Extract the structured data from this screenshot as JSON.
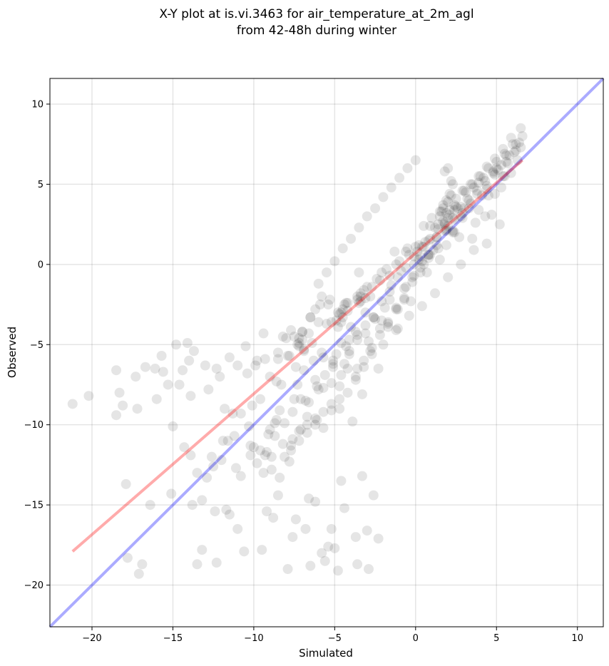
{
  "chart_data": {
    "type": "scatter",
    "title": "X-Y plot at is.vi.3463 for air_temperature_at_2m_agl",
    "subtitle": "from 42-48h during winter",
    "xlabel": "Simulated",
    "ylabel": "Observed",
    "xlim": [
      -22.6,
      11.6
    ],
    "ylim": [
      -22.6,
      11.6
    ],
    "x_ticks": [
      -20,
      -15,
      -10,
      -5,
      0,
      5,
      10
    ],
    "y_ticks": [
      -20,
      -15,
      -10,
      -5,
      0,
      5,
      10
    ],
    "x_tick_labels": [
      "−20",
      "−15",
      "−10",
      "−5",
      "0",
      "5",
      "10"
    ],
    "y_tick_labels": [
      "−20",
      "−15",
      "−10",
      "−5",
      "0",
      "5",
      "10"
    ],
    "grid": true,
    "colors": {
      "points": "#000000",
      "fit_line": "#ff0000",
      "identity_line": "#0000ff"
    },
    "series": [
      {
        "kind": "points",
        "x": [
          -21.2,
          -20.2,
          -18.5,
          -18.5,
          -18.3,
          -18.1,
          -17.9,
          -17.3,
          -17.2,
          -16.7,
          -16.1,
          -16.0,
          -15.7,
          -15.6,
          -15.3,
          -15.1,
          -15.0,
          -14.8,
          -14.6,
          -14.4,
          -14.3,
          -14.1,
          -14.0,
          -13.9,
          -13.9,
          -13.7,
          -13.5,
          -13.2,
          -13.0,
          -12.8,
          -12.6,
          -12.4,
          -12.3,
          -12.1,
          -11.9,
          -11.7,
          -11.5,
          -11.3,
          -11.0,
          -10.8,
          -10.5,
          -10.3,
          -10.1,
          -9.9,
          -9.6,
          -9.4,
          -9.2,
          -9.0,
          -8.9,
          -8.7,
          -8.5,
          -8.3,
          -8.1,
          -7.9,
          -7.7,
          -7.5,
          -7.3,
          -7.1,
          -6.9,
          -6.7,
          -6.5,
          -6.3,
          -6.1,
          -5.9,
          -5.7,
          -5.5,
          -5.3,
          -5.1,
          -4.9,
          -4.7,
          -4.5,
          -4.3,
          -4.1,
          -3.9,
          -3.7,
          -3.5,
          -3.3,
          -3.1,
          -2.9,
          -2.7,
          -2.5,
          -2.3,
          -2.1,
          -1.9,
          -1.7,
          -1.5,
          -1.3,
          -1.1,
          -0.9,
          -0.7,
          -0.5,
          -0.3,
          -0.1,
          0.1,
          0.3,
          0.5,
          0.7,
          0.9,
          1.1,
          1.3,
          1.5,
          1.7,
          1.9,
          2.1,
          2.3,
          2.5,
          2.7,
          2.9,
          3.1,
          3.3,
          3.5,
          3.7,
          3.9,
          4.1,
          4.3,
          4.5,
          4.7,
          4.9,
          5.1,
          5.3,
          5.5,
          5.7,
          5.9,
          6.1,
          6.3,
          6.5,
          6.6,
          -17.8,
          -17.1,
          -16.9,
          -16.4,
          -13.5,
          -13.2,
          -12.3,
          -11.5,
          -11.0,
          -10.6,
          -9.5,
          -9.2,
          -8.8,
          -8.5,
          -7.9,
          -7.6,
          -7.4,
          -6.8,
          -6.6,
          -6.5,
          -6.2,
          -5.8,
          -5.6,
          -5.4,
          -5.2,
          -5.0,
          -4.8,
          -4.6,
          -4.4,
          -3.7,
          -3.6,
          -3.3,
          -3.0,
          -2.9,
          -2.6,
          -2.3,
          -10.4,
          -9.3,
          -8.6,
          -8.0,
          -7.4,
          -6.9,
          -6.2,
          -5.7,
          -5.1,
          -4.6,
          -4.1,
          -3.6,
          -3.1,
          -2.6,
          -2.1,
          -1.6,
          -1.1,
          -0.6,
          -0.1,
          0.4,
          0.9,
          1.4,
          1.9,
          2.4,
          2.9,
          3.4,
          3.9,
          4.4,
          4.9,
          5.4,
          -8.2,
          -7.8,
          -7.2,
          -6.6,
          -6.0,
          -5.4,
          -4.8,
          -4.2,
          -3.6,
          -3.0,
          -2.4,
          -1.8,
          -1.2,
          -0.6,
          0.0,
          0.6,
          1.2,
          1.8,
          2.4,
          3.0,
          3.6,
          4.2,
          4.8,
          5.6,
          6.2,
          -9.0,
          -8.4,
          -7.6,
          -6.8,
          -6.0,
          -5.2,
          -4.4,
          -3.6,
          -2.8,
          -2.0,
          -1.2,
          -0.4,
          0.4,
          1.2,
          2.0,
          2.8,
          3.6,
          4.4,
          5.2,
          -11.8,
          -11.2,
          -10.2,
          -9.8,
          -9.4,
          -8.9,
          -8.4,
          -7.8,
          -7.2,
          -6.7,
          -6.2,
          -5.7,
          -5.2,
          -4.7,
          -4.2,
          -3.7,
          -3.2,
          -2.7,
          -2.2,
          -1.7,
          -1.2,
          -0.7,
          -0.2,
          0.3,
          0.8,
          1.3,
          1.8,
          2.3,
          2.8,
          3.3,
          3.8,
          4.3,
          4.8,
          5.3,
          5.8,
          6.4,
          -7.0,
          -6.4,
          -5.8,
          -5.2,
          -4.6,
          -4.0,
          -3.4,
          -2.8,
          -2.2,
          -1.6,
          -1.0,
          -0.4,
          0.2,
          0.8,
          1.4,
          2.0,
          2.6,
          3.2,
          3.8,
          4.4,
          5.0,
          5.6,
          6.2,
          -13.8,
          -12.9,
          -12.0,
          -11.1,
          -10.2,
          -9.6,
          -9.1,
          -8.6,
          -8.1,
          -7.6,
          -7.1,
          -6.6,
          -6.1,
          -5.6,
          -5.1,
          -4.6,
          -4.1,
          -3.6,
          -3.1,
          -2.6,
          -2.1,
          -1.6,
          -1.1,
          -0.6,
          -0.1,
          0.4,
          0.9,
          1.4,
          1.9,
          2.4,
          2.9,
          3.4,
          3.9,
          4.4,
          4.9,
          5.4,
          5.9,
          6.5,
          -12.5,
          -11.6,
          -10.8,
          -10.0,
          -9.3,
          -8.7,
          -8.2,
          -7.7,
          -7.2,
          -6.7,
          -6.2,
          -5.7,
          -5.2,
          -4.7,
          -4.2,
          -3.7,
          -3.2,
          -2.7,
          -2.2,
          -1.7,
          -1.2,
          -0.7,
          -0.2,
          0.3,
          0.8,
          1.3,
          1.8,
          2.3,
          2.8,
          -6.0,
          -5.5,
          -5.0,
          -4.5,
          -4.0,
          -3.5,
          -3.0,
          -2.5,
          -2.0,
          -1.5,
          -1.0,
          -0.5,
          0.0,
          0.5,
          1.0,
          1.5,
          2.0,
          2.5,
          3.0,
          3.5,
          4.0,
          4.5,
          5.0,
          5.5,
          6.0,
          1.5,
          1.7,
          1.9,
          2.1,
          2.3,
          1.8,
          2.0,
          2.2,
          1.6,
          2.4,
          2.0,
          1.9,
          2.1,
          1.7,
          2.2,
          -7.5,
          -7.2,
          -6.9,
          -7.3,
          -7.0,
          -4.5,
          -4.2,
          -4.8,
          -4.4,
          -4.6,
          -3.4,
          -3.2,
          -3.5,
          0.2,
          0.5,
          0.8,
          -5.8,
          -6.2,
          -6.5,
          -4.9,
          -7.0,
          -4.3,
          -3.6,
          -3.4,
          -8.5,
          -7.7,
          -9.8,
          -7.2,
          -4.7,
          -3.1
        ],
        "y": [
          -8.7,
          -8.2,
          -6.6,
          -9.4,
          -8.0,
          -8.8,
          -13.7,
          -7.0,
          -9.0,
          -6.4,
          -6.5,
          -8.4,
          -5.7,
          -6.7,
          -7.5,
          -14.3,
          -10.1,
          -5.0,
          -7.5,
          -6.6,
          -11.4,
          -4.9,
          -6.0,
          -8.2,
          -11.9,
          -5.4,
          -13.0,
          -14.7,
          -6.3,
          -7.8,
          -12.0,
          -15.4,
          -6.5,
          -7.0,
          -11.0,
          -15.3,
          -5.8,
          -9.3,
          -6.3,
          -9.3,
          -5.1,
          -10.1,
          -8.8,
          -6.3,
          -8.4,
          -4.3,
          -11.7,
          -7.0,
          -12.8,
          -9.9,
          -5.9,
          -7.5,
          -12.0,
          -5.7,
          -11.3,
          -8.4,
          -7.5,
          -10.3,
          -6.6,
          -9.5,
          -3.3,
          -6.0,
          -9.7,
          -2.5,
          -7.7,
          -3.7,
          -2.2,
          -6.2,
          -5.6,
          -8.4,
          -2.8,
          -5.1,
          -4.7,
          -9.8,
          -4.2,
          -0.5,
          -8.1,
          -3.0,
          -4.8,
          -1.4,
          -3.4,
          -6.5,
          -0.5,
          -2.7,
          -3.9,
          -1.3,
          0.8,
          -4.0,
          -0.4,
          -1.5,
          1.0,
          -2.3,
          0.0,
          0.8,
          0.5,
          1.1,
          -0.5,
          2.4,
          0.9,
          1.7,
          0.3,
          2.7,
          1.2,
          3.4,
          2.1,
          3.6,
          1.7,
          2.9,
          4.5,
          3.5,
          1.6,
          2.6,
          5.1,
          4.3,
          3.0,
          4.3,
          3.1,
          5.6,
          5.9,
          4.8,
          5.5,
          6.3,
          5.7,
          7.0,
          6.5,
          7.3,
          8.0,
          -18.3,
          -19.3,
          -18.7,
          -15.0,
          -18.7,
          -17.8,
          -18.6,
          -15.6,
          -16.5,
          -17.9,
          -17.8,
          -15.4,
          -15.8,
          -14.4,
          -19.0,
          -17.0,
          -15.9,
          -16.5,
          -14.6,
          -18.8,
          -14.8,
          -18.0,
          -18.5,
          -17.6,
          -16.5,
          -17.7,
          -19.1,
          -13.5,
          -15.2,
          -17.0,
          -18.7,
          -13.2,
          -16.6,
          -19.0,
          -14.4,
          -17.1,
          -6.8,
          -5.9,
          -7.3,
          -4.6,
          -6.4,
          -5.4,
          -7.2,
          -5.8,
          -6.0,
          -4.9,
          -5.6,
          -4.4,
          -4.3,
          -3.3,
          -3.5,
          -2.2,
          -2.8,
          -1.4,
          -0.7,
          0.2,
          0.6,
          1.0,
          2.2,
          2.0,
          3.2,
          3.8,
          3.4,
          4.7,
          4.4,
          5.5,
          -4.5,
          -5.7,
          -4.6,
          -4.3,
          -3.6,
          -2.5,
          -3.0,
          -2.4,
          -2.0,
          -1.4,
          -0.9,
          -0.3,
          0.0,
          0.8,
          1.1,
          1.4,
          2.3,
          2.5,
          3.4,
          3.5,
          4.8,
          5.4,
          5.8,
          6.4,
          7.1,
          -10.3,
          -9.1,
          -10.9,
          -8.5,
          -7.8,
          -7.4,
          -6.2,
          -6.5,
          -5.4,
          -5.0,
          -4.1,
          -3.2,
          -2.6,
          -1.8,
          -0.8,
          0.0,
          0.9,
          1.3,
          2.5,
          -9.0,
          -10.7,
          -11.9,
          -12.4,
          -13.0,
          -12.0,
          -13.3,
          -12.3,
          -11.0,
          -10.5,
          -10.0,
          -9.2,
          -9.1,
          -7.6,
          -6.5,
          -7.0,
          -6.0,
          -5.2,
          -4.0,
          -3.6,
          -2.7,
          -2.1,
          -0.8,
          -0.5,
          0.4,
          1.7,
          2.6,
          2.0,
          3.0,
          4.0,
          4.6,
          5.2,
          5.7,
          6.2,
          6.8,
          7.6,
          -4.2,
          -4.9,
          -5.5,
          -3.6,
          -3.0,
          -3.9,
          -2.3,
          -2.0,
          -1.0,
          -0.7,
          0.2,
          0.6,
          1.2,
          1.5,
          2.2,
          2.9,
          3.5,
          4.1,
          4.4,
          4.9,
          6.0,
          6.8,
          7.5,
          -15.0,
          -13.3,
          -12.2,
          -12.7,
          -11.3,
          -11.6,
          -10.6,
          -9.7,
          -9.9,
          -9.2,
          -8.4,
          -8.6,
          -7.6,
          -6.9,
          -6.4,
          -6.9,
          -5.4,
          -4.7,
          -3.8,
          -3.3,
          -2.3,
          -1.7,
          -0.8,
          -0.2,
          0.5,
          1.1,
          1.6,
          2.5,
          3.2,
          3.7,
          4.6,
          5.0,
          5.5,
          6.1,
          6.6,
          7.2,
          7.9,
          8.5,
          -12.6,
          -11.0,
          -13.2,
          -11.4,
          -11.9,
          -10.7,
          -11.2,
          -11.6,
          -10.4,
          -10.0,
          -9.6,
          -10.2,
          -8.7,
          -9.0,
          -8.0,
          -7.2,
          -6.4,
          -5.6,
          -4.4,
          -3.7,
          -2.8,
          -2.2,
          -1.1,
          -0.2,
          0.6,
          1.2,
          2.1,
          2.9,
          3.6,
          -1.2,
          -0.5,
          0.2,
          1.0,
          1.6,
          2.3,
          3.0,
          3.5,
          4.2,
          4.8,
          5.4,
          6.0,
          6.5,
          2.4,
          2.9,
          3.3,
          3.9,
          4.1,
          4.6,
          5.0,
          5.5,
          6.0,
          6.4,
          6.9,
          7.5,
          3.0,
          3.5,
          4.0,
          4.4,
          5.0,
          5.8,
          6.0,
          5.2,
          3.3,
          2.8,
          2.4,
          2.1,
          3.1,
          3.7,
          4.3,
          -4.5,
          -4.9,
          -5.3,
          -5.0,
          -4.7,
          -3.3,
          -2.9,
          -3.9,
          -2.5,
          -3.6,
          -2.0,
          -1.6,
          -2.4,
          0.3,
          0.0,
          0.6,
          -2.0,
          -2.8,
          -3.3,
          -3.5,
          -4.2,
          -2.4,
          -2.2,
          -1.8,
          -5.5,
          -4.1,
          -6.0,
          -5.1,
          -3.1,
          -2.1
        ]
      },
      {
        "kind": "line",
        "role": "fit",
        "x": [
          -21.2,
          6.6
        ],
        "y": [
          -17.9,
          6.5
        ]
      },
      {
        "kind": "line",
        "role": "identity",
        "x": [
          -22.6,
          11.6
        ],
        "y": [
          -22.6,
          11.6
        ]
      }
    ]
  }
}
